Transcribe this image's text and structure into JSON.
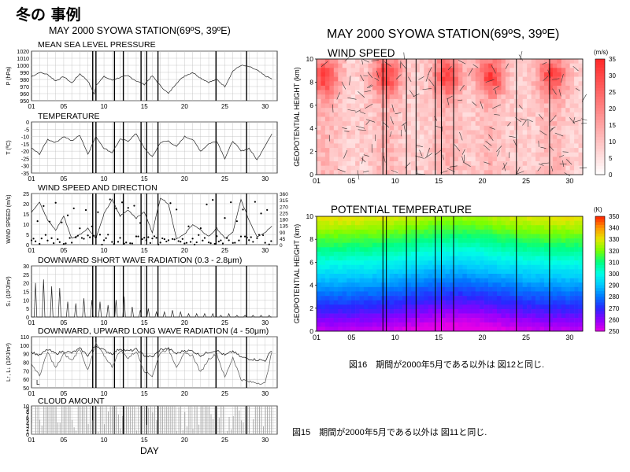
{
  "page_title": "冬の 事例",
  "left_title": "MAY 2000 SYOWA STATION(69ºS, 39ºE)",
  "right_title": "MAY 2000  SYOWA STATION(69ºS, 39ºE)",
  "left_x_ticks": [
    "01",
    "05",
    "10",
    "15",
    "20",
    "25",
    "30"
  ],
  "right_x_ticks": [
    "01",
    "05",
    "10",
    "15",
    "20",
    "25",
    "30"
  ],
  "x_label": "DAY",
  "caption_16": "図16　期間が2000年5月である以外は 図12と同じ.",
  "caption_15": "図15　期間が2000年5月である以外は 図11と同じ.",
  "chart_data": [
    {
      "type": "line",
      "title": "MEAN SEA LEVEL PRESSURE",
      "ylabel": "P (hPa)",
      "y_ticks": [
        "1020",
        "1010",
        "1000",
        "990",
        "980",
        "970",
        "960",
        "950"
      ],
      "ylim": [
        950,
        1020
      ],
      "xlim": [
        1,
        31
      ],
      "x": [
        1,
        2,
        3,
        4,
        5,
        6,
        7,
        8,
        8.8,
        9,
        10,
        11,
        12,
        13,
        14,
        15,
        16,
        17,
        18,
        19,
        20,
        21,
        22,
        23,
        24,
        25,
        26,
        27,
        28,
        29,
        30,
        31
      ],
      "values": [
        984,
        990,
        987,
        978,
        984,
        975,
        988,
        978,
        959,
        972,
        984,
        979,
        983,
        985,
        978,
        973,
        985,
        971,
        960,
        975,
        985,
        990,
        982,
        976,
        980,
        970,
        992,
        1000,
        998,
        993,
        985,
        980
      ]
    },
    {
      "type": "line",
      "title": "TEMPERATURE",
      "ylabel": "T (ºC)",
      "y_ticks": [
        "0",
        "-5",
        "-10",
        "-15",
        "-20",
        "-25",
        "-30",
        "-35"
      ],
      "ylim": [
        -35,
        0
      ],
      "xlim": [
        1,
        31
      ],
      "x": [
        1,
        2,
        3,
        4,
        5,
        6,
        7,
        8,
        9,
        10,
        11,
        12,
        13,
        14,
        15,
        16,
        17,
        18,
        19,
        20,
        21,
        22,
        23,
        24,
        25,
        26,
        27,
        28,
        29,
        30,
        31
      ],
      "values": [
        -18,
        -22,
        -12,
        -14,
        -10,
        -13,
        -9,
        -22,
        -10,
        -18,
        -21,
        -12,
        -13,
        -8,
        -18,
        -24,
        -14,
        -13,
        -17,
        -10,
        -12,
        -20,
        -15,
        -13,
        -25,
        -13,
        -20,
        -18,
        -26,
        -16,
        -7
      ]
    },
    {
      "type": "line",
      "title": "WIND SPEED AND DIRECTION",
      "ylabel": "WIND SPEED (m/s)",
      "y_ticks": [
        "25",
        "20",
        "15",
        "10",
        "5",
        "0"
      ],
      "y2_ticks": [
        "360",
        "315",
        "270",
        "225",
        "180",
        "135",
        "90",
        "45",
        "0"
      ],
      "ylim": [
        0,
        25
      ],
      "xlim": [
        1,
        31
      ],
      "x": [
        1,
        2,
        3,
        4,
        5,
        6,
        7,
        8,
        9,
        10,
        11,
        12,
        13,
        14,
        15,
        16,
        17,
        18,
        19,
        20,
        21,
        22,
        23,
        24,
        25,
        26,
        27,
        28,
        29,
        30,
        31
      ],
      "values": [
        16,
        21,
        12,
        7,
        14,
        3,
        5,
        8,
        3,
        15,
        22,
        14,
        17,
        13,
        16,
        6,
        23,
        20,
        3,
        5,
        10,
        7,
        4,
        8,
        3,
        6,
        22,
        12,
        4,
        6,
        10
      ]
    },
    {
      "type": "line",
      "title": "DOWNWARD SHORT WAVE RADIATION (0.3 - 2.8μm)",
      "ylabel": "S↓ (10²J/m²)",
      "y_ticks": [
        "30",
        "25",
        "20",
        "15",
        "10",
        "5",
        "0"
      ],
      "ylim": [
        0,
        30
      ],
      "xlim": [
        1,
        31
      ],
      "x": [
        1,
        2,
        3,
        4,
        5,
        6,
        7,
        8,
        9,
        10,
        11,
        12,
        13,
        14,
        15,
        16,
        17,
        18,
        19,
        20,
        21,
        22,
        23,
        24,
        25,
        26,
        27,
        28,
        29,
        30,
        31
      ],
      "values": [
        20,
        22,
        18,
        17,
        9,
        8,
        11,
        10,
        9,
        7,
        10,
        12,
        6,
        4,
        5,
        3,
        3,
        4,
        3,
        2,
        2,
        2,
        2,
        1,
        2,
        1,
        1,
        1,
        1,
        1,
        1
      ]
    },
    {
      "type": "line",
      "title": "DOWNWARD, UPWARD LONG WAVE RADIATION (4 - 50μm)",
      "ylabel": "L↑, L↓ (10²J/m²)",
      "y_ticks": [
        "110",
        "100",
        "90",
        "80",
        "70",
        "60",
        "50"
      ],
      "ylim": [
        50,
        110
      ],
      "xlim": [
        1,
        31
      ],
      "x": [
        1,
        2,
        3,
        4,
        5,
        6,
        7,
        8,
        9,
        10,
        11,
        12,
        13,
        14,
        15,
        16,
        17,
        18,
        19,
        20,
        21,
        22,
        23,
        24,
        25,
        26,
        27,
        28,
        29,
        30,
        31
      ],
      "series": [
        {
          "name": "L↑",
          "values": [
            92,
            88,
            95,
            90,
            93,
            91,
            96,
            88,
            100,
            94,
            90,
            96,
            93,
            95,
            88,
            86,
            95,
            96,
            90,
            94,
            93,
            88,
            92,
            94,
            88,
            93,
            86,
            84,
            83,
            82,
            97
          ]
        },
        {
          "name": "L↓",
          "values": [
            78,
            64,
            92,
            73,
            90,
            82,
            96,
            70,
            102,
            88,
            75,
            94,
            85,
            93,
            70,
            64,
            92,
            95,
            75,
            90,
            88,
            68,
            84,
            90,
            62,
            86,
            60,
            57,
            56,
            55,
            100
          ]
        }
      ]
    },
    {
      "type": "bar",
      "title": "CLOUD AMOUNT",
      "y_ticks": [
        "10",
        "9",
        "8",
        "7",
        "6",
        "5",
        "4",
        "3",
        "2",
        "1",
        "0"
      ],
      "ylim": [
        0,
        10
      ],
      "xlim": [
        1,
        31
      ]
    },
    {
      "type": "heatmap",
      "title": "WIND SPEED",
      "ylabel": "GEOPOTENTIAL HEIGHT (km)",
      "y_ticks": [
        "10",
        "8",
        "6",
        "4",
        "2",
        "0"
      ],
      "ylim": [
        0,
        10
      ],
      "xlim": [
        1,
        31
      ],
      "colorbar_unit": "(m/s)",
      "colorbar_ticks": [
        "35",
        "30",
        "25",
        "20",
        "15",
        "10",
        "5",
        "0"
      ],
      "colorbar_range": [
        0,
        35
      ]
    },
    {
      "type": "heatmap",
      "title": "POTENTIAL TEMPERATURE",
      "ylabel": "GEOPOTENTIAL HEIGHT (km)",
      "y_ticks": [
        "10",
        "8",
        "6",
        "4",
        "2",
        "0"
      ],
      "ylim": [
        0,
        10
      ],
      "xlim": [
        1,
        31
      ],
      "colorbar_unit": "(K)",
      "colorbar_ticks": [
        "350",
        "340",
        "330",
        "320",
        "310",
        "300",
        "290",
        "280",
        "270",
        "260",
        "250"
      ],
      "colorbar_range": [
        250,
        350
      ]
    }
  ],
  "event_days": [
    8.6,
    9.0,
    11.3,
    12.4,
    14.6,
    15.3,
    16.7,
    23.9,
    27.7
  ]
}
